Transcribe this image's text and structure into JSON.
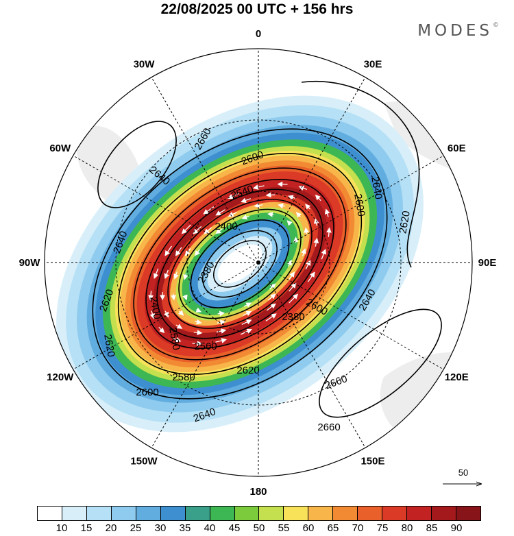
{
  "title": "22/08/2025  00 UTC  + 156 hrs",
  "brand": "MODES",
  "brand_mark": "©",
  "map": {
    "projection": "south-polar-stereographic",
    "longitude_labels": [
      "0",
      "30E",
      "60E",
      "90E",
      "120E",
      "150E",
      "180",
      "150W",
      "120W",
      "90W",
      "60W",
      "30W"
    ],
    "contour_labels": [
      "2660",
      "2640",
      "2600",
      "2640",
      "2620",
      "2640",
      "2540",
      "2400",
      "2600",
      "2380",
      "2620",
      "2400",
      "2380",
      "2580",
      "2620",
      "2600",
      "2560",
      "2580",
      "2620",
      "2600",
      "2640",
      "2660",
      "2660",
      "2640"
    ],
    "colors": {
      "wind_10_15": "#d8effa",
      "wind_15_20": "#b5e0f5",
      "wind_20_25": "#8fcbee",
      "wind_25_30": "#62ade0",
      "wind_30_35": "#3e8fcf",
      "wind_35_40": "#3aa08a",
      "wind_40_45": "#3db654",
      "wind_45_50": "#7ccb3d",
      "wind_50_55": "#c4e04e",
      "wind_55_60": "#f7e25a",
      "wind_60_65": "#f7b54a",
      "wind_65_70": "#f28a34",
      "wind_70_75": "#e9602a",
      "wind_75_80": "#db3a26",
      "wind_80_85": "#c22222",
      "wind_85_90": "#a41a1c",
      "wind_90_plus": "#861418",
      "land": "#ededed"
    }
  },
  "reference_vector": {
    "label": "50"
  },
  "colorbar": {
    "ticks": [
      "10",
      "15",
      "20",
      "25",
      "30",
      "35",
      "40",
      "45",
      "50",
      "55",
      "60",
      "65",
      "70",
      "75",
      "80",
      "85",
      "90"
    ],
    "colors": [
      "#ffffff",
      "#d8effa",
      "#b5e0f5",
      "#8fcbee",
      "#62ade0",
      "#3e8fcf",
      "#3aa08a",
      "#3db654",
      "#7ccb3d",
      "#c4e04e",
      "#f7e25a",
      "#f7b54a",
      "#f28a34",
      "#e9602a",
      "#db3a26",
      "#c22222",
      "#a41a1c",
      "#861418"
    ]
  }
}
